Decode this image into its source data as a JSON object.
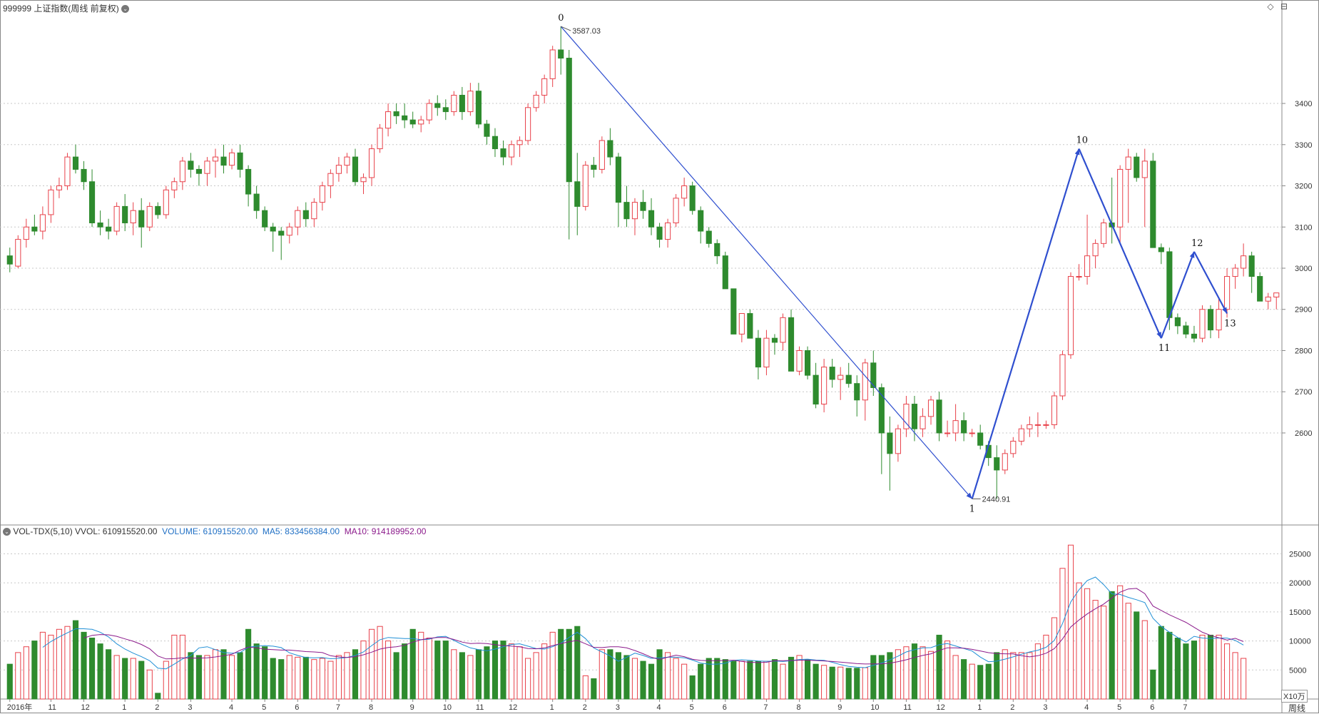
{
  "window": {
    "main_title": "999999 上证指数(周线 前复权)",
    "sub_title_name": "VOL-TDX(5,10)",
    "sub_title_vvol": "VVOL: 610915520.00",
    "sub_title_volume": "VOLUME: 610915520.00",
    "sub_title_ma5": "MA5: 833456384.00",
    "sub_title_ma10": "MA10: 914189952.00",
    "vol_unit": "X10万",
    "period_label": "周线",
    "icons": [
      "diamond-icon",
      "maximize-icon"
    ]
  },
  "colors": {
    "up": "#e8414a",
    "down": "#2e8b2e",
    "wave": "#2f4fcf",
    "ma5": "#1f8fd6",
    "ma10": "#8b1a8b",
    "grid": "#c8c8c8"
  },
  "chart_data": {
    "type": "candlestick",
    "y_axis_price": {
      "range": [
        2380,
        3620
      ],
      "ticks": [
        2600,
        2700,
        2800,
        2900,
        3000,
        3100,
        3200,
        3300,
        3400
      ]
    },
    "y_axis_volume": {
      "range": [
        0,
        28000
      ],
      "ticks": [
        5000,
        10000,
        15000,
        20000,
        25000
      ]
    },
    "x_labels": [
      {
        "i": 0,
        "t": "2016年"
      },
      {
        "i": 5,
        "t": "11"
      },
      {
        "i": 9,
        "t": "12"
      },
      {
        "i": 14,
        "t": "1"
      },
      {
        "i": 18,
        "t": "2"
      },
      {
        "i": 22,
        "t": "3"
      },
      {
        "i": 27,
        "t": "4"
      },
      {
        "i": 31,
        "t": "5"
      },
      {
        "i": 35,
        "t": "6"
      },
      {
        "i": 40,
        "t": "7"
      },
      {
        "i": 44,
        "t": "8"
      },
      {
        "i": 49,
        "t": "9"
      },
      {
        "i": 53,
        "t": "10"
      },
      {
        "i": 57,
        "t": "11"
      },
      {
        "i": 61,
        "t": "12"
      },
      {
        "i": 66,
        "t": "1"
      },
      {
        "i": 70,
        "t": "2"
      },
      {
        "i": 74,
        "t": "3"
      },
      {
        "i": 79,
        "t": "4"
      },
      {
        "i": 83,
        "t": "5"
      },
      {
        "i": 87,
        "t": "6"
      },
      {
        "i": 92,
        "t": "7"
      },
      {
        "i": 96,
        "t": "8"
      },
      {
        "i": 101,
        "t": "9"
      },
      {
        "i": 105,
        "t": "10"
      },
      {
        "i": 109,
        "t": "11"
      },
      {
        "i": 113,
        "t": "12"
      },
      {
        "i": 118,
        "t": "1"
      },
      {
        "i": 122,
        "t": "2"
      },
      {
        "i": 126,
        "t": "3"
      },
      {
        "i": 131,
        "t": "4"
      },
      {
        "i": 135,
        "t": "5"
      },
      {
        "i": 139,
        "t": "6"
      },
      {
        "i": 143,
        "t": "7"
      }
    ],
    "ohlc": [
      [
        3030,
        3050,
        2990,
        3010
      ],
      [
        3005,
        3080,
        3000,
        3070
      ],
      [
        3070,
        3120,
        3050,
        3100
      ],
      [
        3100,
        3130,
        3080,
        3090
      ],
      [
        3090,
        3150,
        3070,
        3130
      ],
      [
        3130,
        3200,
        3110,
        3190
      ],
      [
        3190,
        3220,
        3170,
        3200
      ],
      [
        3200,
        3280,
        3190,
        3270
      ],
      [
        3270,
        3300,
        3230,
        3240
      ],
      [
        3240,
        3260,
        3190,
        3210
      ],
      [
        3210,
        3240,
        3100,
        3110
      ],
      [
        3110,
        3140,
        3080,
        3100
      ],
      [
        3100,
        3120,
        3070,
        3090
      ],
      [
        3090,
        3160,
        3080,
        3150
      ],
      [
        3150,
        3180,
        3090,
        3110
      ],
      [
        3110,
        3160,
        3080,
        3140
      ],
      [
        3140,
        3170,
        3050,
        3100
      ],
      [
        3100,
        3160,
        3090,
        3150
      ],
      [
        3150,
        3160,
        3120,
        3130
      ],
      [
        3130,
        3200,
        3120,
        3190
      ],
      [
        3190,
        3220,
        3170,
        3210
      ],
      [
        3210,
        3270,
        3190,
        3260
      ],
      [
        3260,
        3280,
        3220,
        3240
      ],
      [
        3240,
        3250,
        3200,
        3230
      ],
      [
        3230,
        3270,
        3200,
        3260
      ],
      [
        3260,
        3290,
        3220,
        3270
      ],
      [
        3270,
        3300,
        3230,
        3250
      ],
      [
        3250,
        3290,
        3240,
        3280
      ],
      [
        3280,
        3300,
        3220,
        3240
      ],
      [
        3240,
        3250,
        3150,
        3180
      ],
      [
        3180,
        3200,
        3120,
        3140
      ],
      [
        3140,
        3150,
        3090,
        3100
      ],
      [
        3100,
        3110,
        3040,
        3090
      ],
      [
        3090,
        3100,
        3020,
        3080
      ],
      [
        3080,
        3110,
        3060,
        3100
      ],
      [
        3100,
        3150,
        3080,
        3140
      ],
      [
        3140,
        3160,
        3100,
        3120
      ],
      [
        3120,
        3170,
        3100,
        3160
      ],
      [
        3160,
        3210,
        3140,
        3200
      ],
      [
        3200,
        3240,
        3170,
        3230
      ],
      [
        3230,
        3270,
        3210,
        3250
      ],
      [
        3250,
        3280,
        3230,
        3270
      ],
      [
        3270,
        3290,
        3200,
        3210
      ],
      [
        3210,
        3230,
        3180,
        3220
      ],
      [
        3220,
        3300,
        3200,
        3290
      ],
      [
        3290,
        3350,
        3280,
        3340
      ],
      [
        3340,
        3400,
        3320,
        3380
      ],
      [
        3380,
        3400,
        3350,
        3370
      ],
      [
        3370,
        3400,
        3340,
        3360
      ],
      [
        3360,
        3380,
        3340,
        3350
      ],
      [
        3350,
        3370,
        3330,
        3360
      ],
      [
        3360,
        3410,
        3350,
        3400
      ],
      [
        3400,
        3420,
        3370,
        3390
      ],
      [
        3390,
        3410,
        3360,
        3380
      ],
      [
        3380,
        3430,
        3370,
        3420
      ],
      [
        3420,
        3440,
        3360,
        3380
      ],
      [
        3380,
        3450,
        3370,
        3430
      ],
      [
        3430,
        3450,
        3340,
        3350
      ],
      [
        3350,
        3360,
        3300,
        3320
      ],
      [
        3320,
        3340,
        3270,
        3290
      ],
      [
        3290,
        3310,
        3250,
        3270
      ],
      [
        3270,
        3310,
        3250,
        3300
      ],
      [
        3300,
        3320,
        3270,
        3310
      ],
      [
        3310,
        3400,
        3300,
        3390
      ],
      [
        3390,
        3430,
        3380,
        3420
      ],
      [
        3420,
        3470,
        3400,
        3460
      ],
      [
        3460,
        3540,
        3440,
        3530
      ],
      [
        3530,
        3587,
        3470,
        3510
      ],
      [
        3510,
        3530,
        3070,
        3210
      ],
      [
        3210,
        3280,
        3080,
        3150
      ],
      [
        3150,
        3260,
        3140,
        3250
      ],
      [
        3250,
        3270,
        3220,
        3240
      ],
      [
        3240,
        3320,
        3230,
        3310
      ],
      [
        3310,
        3340,
        3250,
        3270
      ],
      [
        3270,
        3280,
        3100,
        3160
      ],
      [
        3160,
        3200,
        3100,
        3120
      ],
      [
        3120,
        3170,
        3080,
        3160
      ],
      [
        3160,
        3190,
        3120,
        3140
      ],
      [
        3140,
        3170,
        3080,
        3100
      ],
      [
        3100,
        3110,
        3050,
        3070
      ],
      [
        3070,
        3120,
        3050,
        3110
      ],
      [
        3110,
        3180,
        3100,
        3170
      ],
      [
        3170,
        3220,
        3150,
        3200
      ],
      [
        3200,
        3210,
        3130,
        3140
      ],
      [
        3140,
        3150,
        3060,
        3090
      ],
      [
        3090,
        3100,
        3050,
        3060
      ],
      [
        3060,
        3070,
        3010,
        3030
      ],
      [
        3030,
        3040,
        2950,
        2950
      ],
      [
        2950,
        2950,
        2840,
        2840
      ],
      [
        2840,
        2890,
        2820,
        2890
      ],
      [
        2890,
        2900,
        2830,
        2830
      ],
      [
        2830,
        2850,
        2730,
        2760
      ],
      [
        2760,
        2850,
        2740,
        2830
      ],
      [
        2830,
        2840,
        2790,
        2820
      ],
      [
        2820,
        2890,
        2800,
        2880
      ],
      [
        2880,
        2900,
        2750,
        2750
      ],
      [
        2750,
        2810,
        2740,
        2800
      ],
      [
        2800,
        2810,
        2730,
        2740
      ],
      [
        2740,
        2770,
        2660,
        2670
      ],
      [
        2670,
        2780,
        2650,
        2760
      ],
      [
        2760,
        2780,
        2710,
        2730
      ],
      [
        2730,
        2760,
        2680,
        2740
      ],
      [
        2740,
        2770,
        2710,
        2720
      ],
      [
        2720,
        2740,
        2640,
        2680
      ],
      [
        2680,
        2780,
        2630,
        2770
      ],
      [
        2770,
        2800,
        2690,
        2710
      ],
      [
        2710,
        2720,
        2500,
        2600
      ],
      [
        2600,
        2640,
        2460,
        2550
      ],
      [
        2550,
        2620,
        2530,
        2610
      ],
      [
        2610,
        2690,
        2590,
        2670
      ],
      [
        2670,
        2690,
        2580,
        2610
      ],
      [
        2610,
        2660,
        2590,
        2640
      ],
      [
        2640,
        2690,
        2620,
        2680
      ],
      [
        2680,
        2700,
        2580,
        2600
      ],
      [
        2600,
        2630,
        2590,
        2600
      ],
      [
        2600,
        2670,
        2580,
        2630
      ],
      [
        2630,
        2650,
        2580,
        2600
      ],
      [
        2600,
        2610,
        2590,
        2600
      ],
      [
        2600,
        2620,
        2560,
        2570
      ],
      [
        2570,
        2580,
        2520,
        2540
      ],
      [
        2540,
        2570,
        2440,
        2510
      ],
      [
        2510,
        2560,
        2500,
        2550
      ],
      [
        2550,
        2590,
        2540,
        2580
      ],
      [
        2580,
        2620,
        2570,
        2610
      ],
      [
        2610,
        2640,
        2590,
        2620
      ],
      [
        2620,
        2650,
        2590,
        2620
      ],
      [
        2620,
        2630,
        2610,
        2620
      ],
      [
        2620,
        2700,
        2610,
        2690
      ],
      [
        2690,
        2800,
        2680,
        2790
      ],
      [
        2790,
        2990,
        2780,
        2980
      ],
      [
        2980,
        3010,
        2970,
        2980
      ],
      [
        2980,
        3130,
        2960,
        3030
      ],
      [
        3030,
        3070,
        3000,
        3060
      ],
      [
        3060,
        3120,
        3050,
        3110
      ],
      [
        3110,
        3220,
        3060,
        3100
      ],
      [
        3100,
        3250,
        3060,
        3240
      ],
      [
        3240,
        3290,
        3110,
        3270
      ],
      [
        3270,
        3280,
        3210,
        3220
      ],
      [
        3220,
        3290,
        3100,
        3260
      ],
      [
        3260,
        3280,
        3050,
        3050
      ],
      [
        3050,
        3060,
        3010,
        3040
      ],
      [
        3040,
        3050,
        2850,
        2880
      ],
      [
        2880,
        2890,
        2840,
        2860
      ],
      [
        2860,
        2870,
        2830,
        2840
      ],
      [
        2840,
        2860,
        2820,
        2830
      ],
      [
        2830,
        2910,
        2820,
        2900
      ],
      [
        2900,
        2910,
        2830,
        2850
      ],
      [
        2850,
        2930,
        2830,
        2900
      ],
      [
        2900,
        3000,
        2880,
        2980
      ],
      [
        2980,
        3010,
        2950,
        3000
      ],
      [
        3000,
        3060,
        2980,
        3030
      ],
      [
        3030,
        3040,
        2940,
        2980
      ],
      [
        2980,
        2990,
        2920,
        2920
      ],
      [
        2920,
        2940,
        2900,
        2930
      ],
      [
        2930,
        2940,
        2900,
        2940
      ]
    ],
    "volume": [
      6000,
      8000,
      9000,
      10000,
      11500,
      11000,
      12000,
      12500,
      13500,
      11500,
      10500,
      9500,
      8500,
      7500,
      7000,
      7000,
      6500,
      5000,
      1000,
      6500,
      11000,
      11000,
      8000,
      7500,
      7500,
      8500,
      8500,
      7500,
      8000,
      12000,
      9500,
      9000,
      7000,
      6800,
      7500,
      7200,
      7200,
      6800,
      7000,
      6500,
      7500,
      8000,
      8500,
      10000,
      12000,
      12500,
      10000,
      8000,
      9500,
      12000,
      11500,
      10500,
      10000,
      10000,
      8500,
      8000,
      7500,
      8500,
      9000,
      10000,
      10000,
      9500,
      9000,
      7000,
      8000,
      9500,
      11500,
      12000,
      12000,
      12500,
      4000,
      3500,
      8500,
      8500,
      8000,
      7500,
      7000,
      6500,
      6000,
      8500,
      8000,
      7000,
      6000,
      4000,
      6000,
      7000,
      7000,
      6800,
      6500,
      6500,
      6500,
      6500,
      6500,
      6800,
      6000,
      7200,
      7500,
      6800,
      6000,
      5800,
      5500,
      5500,
      5300,
      5300,
      5400,
      7500,
      7500,
      8000,
      8500,
      9000,
      9500,
      9000,
      8200,
      11000,
      10000,
      7500,
      6800,
      6000,
      5800,
      6000,
      8000,
      8500,
      8000,
      8000,
      8000,
      9500,
      11000,
      14000,
      22500,
      26500,
      20000,
      19000,
      17000,
      16000,
      18500,
      19500,
      16500,
      15000,
      13500,
      5000,
      12500,
      11500,
      10500,
      9500,
      10000,
      11000,
      11000,
      11000,
      9500,
      8000,
      7000
    ]
  },
  "wave_points": [
    {
      "i": 67,
      "p": 3587,
      "label": "0"
    },
    {
      "i": 117,
      "p": 2440,
      "label": "1"
    },
    {
      "i": 130,
      "p": 3290,
      "label": "10"
    },
    {
      "i": 140,
      "p": 2830,
      "label": "11"
    },
    {
      "i": 144,
      "p": 3040,
      "label": "12"
    },
    {
      "i": 148,
      "p": 2890,
      "label": "13"
    }
  ],
  "annotations": {
    "high_label": "3587.03",
    "low_label": "2440.91"
  }
}
